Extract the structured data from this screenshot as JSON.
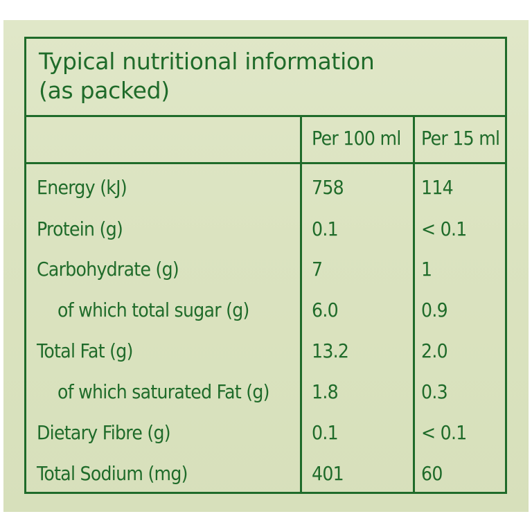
{
  "title": {
    "line1": "Typical nutritional information",
    "line2": "(as packed)"
  },
  "headers": {
    "col1": "Per 100 ml",
    "col2": "Per 15 ml"
  },
  "rows": [
    {
      "label": "Energy (kJ)",
      "per100": "758",
      "per15": "114"
    },
    {
      "label": "Protein (g)",
      "per100": "0.1",
      "per15": "< 0.1"
    },
    {
      "label": "Carbohydrate (g)",
      "per100": "7",
      "per15": "1"
    },
    {
      "label": "of which total sugar (g)",
      "per100": "6.0",
      "per15": "0.9"
    },
    {
      "label": "Total Fat (g)",
      "per100": "13.2",
      "per15": "2.0"
    },
    {
      "label": "of which saturated Fat (g)",
      "per100": "1.8",
      "per15": "0.3"
    },
    {
      "label": "Dietary Fibre (g)",
      "per100": "0.1",
      "per15": "< 0.1"
    },
    {
      "label": "Total Sodium (mg)",
      "per100": "401",
      "per15": "60"
    }
  ],
  "colors": {
    "ink": "#1f6b2a",
    "background": "#dce4c2"
  }
}
